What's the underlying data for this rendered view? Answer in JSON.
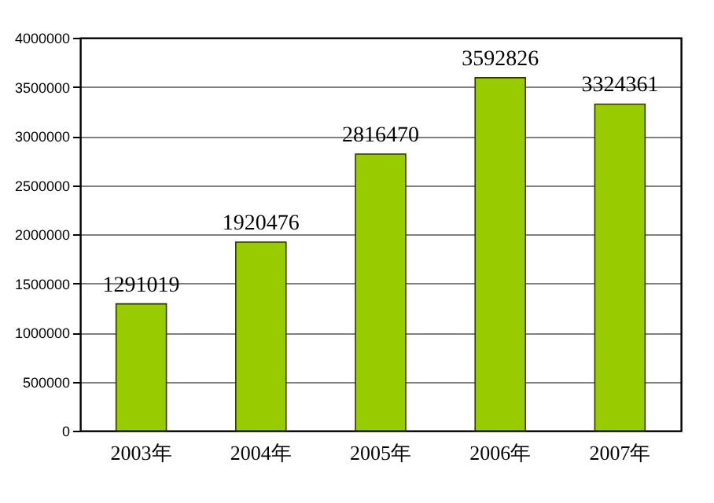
{
  "chart_data": {
    "type": "bar",
    "categories": [
      "2003年",
      "2004年",
      "2005年",
      "2006年",
      "2007年"
    ],
    "values": [
      1291019,
      1920476,
      2816470,
      3592826,
      3324361
    ],
    "color": "#99cc00",
    "ylim": [
      0,
      4000000
    ],
    "yticks": [
      0,
      500000,
      1000000,
      1500000,
      2000000,
      2500000,
      3000000,
      3500000,
      4000000
    ],
    "grid": "y",
    "data_labels": true
  }
}
